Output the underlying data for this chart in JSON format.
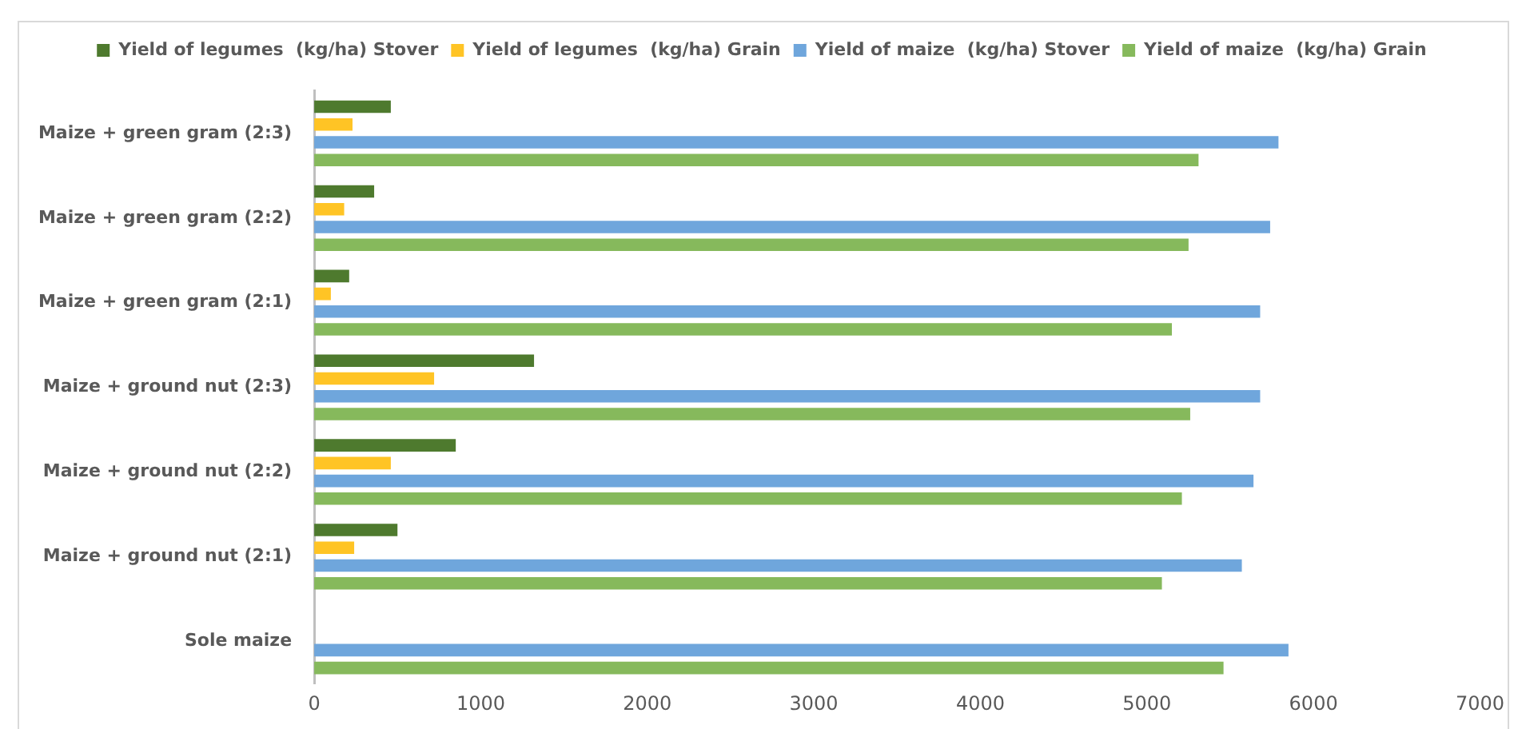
{
  "chart_data": {
    "type": "bar",
    "orientation": "horizontal",
    "categories": [
      "Maize + green gram (2:3)",
      "Maize + green gram (2:2)",
      "Maize + green gram (2:1)",
      "Maize + ground nut (2:3)",
      "Maize + ground nut (2:2)",
      "Maize + ground nut (2:1)",
      "Sole maize"
    ],
    "series": [
      {
        "name": "Yield of legumes  (kg/ha) Stover",
        "color": "#4e7a2e",
        "values": [
          460,
          360,
          210,
          1320,
          850,
          500,
          null
        ]
      },
      {
        "name": "Yield of legumes  (kg/ha) Grain",
        "color": "#ffc425",
        "values": [
          230,
          180,
          100,
          720,
          460,
          240,
          null
        ]
      },
      {
        "name": "Yield of maize  (kg/ha) Stover",
        "color": "#6fa6dc",
        "values": [
          5790,
          5740,
          5680,
          5680,
          5640,
          5570,
          5850
        ]
      },
      {
        "name": "Yield of maize  (kg/ha) Grain",
        "color": "#86b95c",
        "values": [
          5310,
          5250,
          5150,
          5260,
          5210,
          5090,
          5460
        ]
      }
    ],
    "xlim": [
      0,
      7000
    ],
    "xticks": [
      0,
      1000,
      2000,
      3000,
      4000,
      5000,
      6000,
      7000
    ],
    "grid": false,
    "legend": "top"
  }
}
